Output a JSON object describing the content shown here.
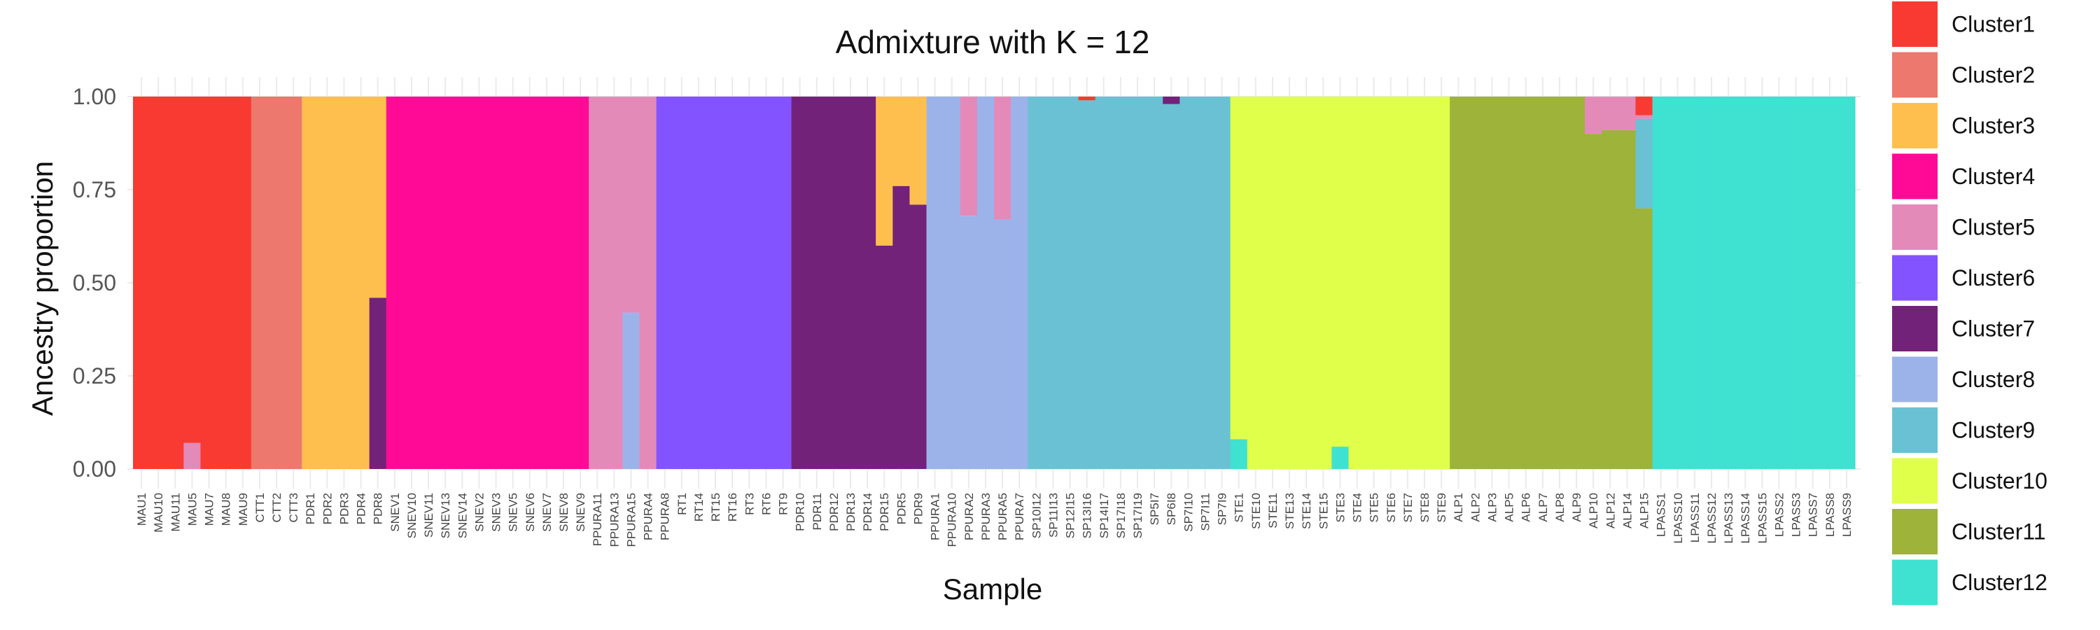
{
  "chart_data": {
    "type": "bar",
    "stacked": true,
    "title": "Admixture with K = 12",
    "xlabel": "Sample",
    "ylabel": "Ancestry proportion",
    "ylim": [
      0,
      1
    ],
    "yticks": [
      "0.00",
      "0.25",
      "0.50",
      "0.75",
      "1.00"
    ],
    "legend_position": "right",
    "clusters": [
      {
        "name": "Cluster1",
        "color": "#F93A32"
      },
      {
        "name": "Cluster2",
        "color": "#EC786E"
      },
      {
        "name": "Cluster3",
        "color": "#FFBF4F"
      },
      {
        "name": "Cluster4",
        "color": "#FF0A97"
      },
      {
        "name": "Cluster5",
        "color": "#E48AB9"
      },
      {
        "name": "Cluster6",
        "color": "#8253FF"
      },
      {
        "name": "Cluster7",
        "color": "#73227A"
      },
      {
        "name": "Cluster8",
        "color": "#9CB3EA"
      },
      {
        "name": "Cluster9",
        "color": "#6AC1D3"
      },
      {
        "name": "Cluster10",
        "color": "#E0FF4A"
      },
      {
        "name": "Cluster11",
        "color": "#9DB33A"
      },
      {
        "name": "Cluster12",
        "color": "#3FE1D1"
      }
    ],
    "samples": [
      {
        "name": "MAU1",
        "mix": {
          "1": 1
        }
      },
      {
        "name": "MAU10",
        "mix": {
          "1": 1
        }
      },
      {
        "name": "MAU11",
        "mix": {
          "1": 1
        }
      },
      {
        "name": "MAU5",
        "mix": {
          "1": 0.93,
          "5": 0.07
        }
      },
      {
        "name": "MAU7",
        "mix": {
          "1": 1
        }
      },
      {
        "name": "MAU8",
        "mix": {
          "1": 1
        }
      },
      {
        "name": "MAU9",
        "mix": {
          "1": 1
        }
      },
      {
        "name": "CTT1",
        "mix": {
          "2": 1
        }
      },
      {
        "name": "CTT2",
        "mix": {
          "2": 1
        }
      },
      {
        "name": "CTT3",
        "mix": {
          "2": 1
        }
      },
      {
        "name": "PDR1",
        "mix": {
          "3": 1
        }
      },
      {
        "name": "PDR2",
        "mix": {
          "3": 1
        }
      },
      {
        "name": "PDR3",
        "mix": {
          "3": 1
        }
      },
      {
        "name": "PDR4",
        "mix": {
          "3": 1
        }
      },
      {
        "name": "PDR8",
        "mix": {
          "7": 0.46,
          "3": 0.54
        }
      },
      {
        "name": "SNEV1",
        "mix": {
          "4": 1
        }
      },
      {
        "name": "SNEV10",
        "mix": {
          "4": 1
        }
      },
      {
        "name": "SNEV11",
        "mix": {
          "4": 1
        }
      },
      {
        "name": "SNEV13",
        "mix": {
          "4": 1
        }
      },
      {
        "name": "SNEV14",
        "mix": {
          "4": 1
        }
      },
      {
        "name": "SNEV2",
        "mix": {
          "4": 1
        }
      },
      {
        "name": "SNEV3",
        "mix": {
          "4": 1
        }
      },
      {
        "name": "SNEV5",
        "mix": {
          "4": 1
        }
      },
      {
        "name": "SNEV6",
        "mix": {
          "4": 1
        }
      },
      {
        "name": "SNEV7",
        "mix": {
          "4": 1
        }
      },
      {
        "name": "SNEV8",
        "mix": {
          "4": 1
        }
      },
      {
        "name": "SNEV9",
        "mix": {
          "4": 1
        }
      },
      {
        "name": "PPURA11",
        "mix": {
          "5": 1
        }
      },
      {
        "name": "PPURA13",
        "mix": {
          "5": 1
        }
      },
      {
        "name": "PPURA15",
        "mix": {
          "8": 0.42,
          "5": 0.58
        }
      },
      {
        "name": "PPURA4",
        "mix": {
          "5": 1
        }
      },
      {
        "name": "PPURA8",
        "mix": {
          "6": 1
        }
      },
      {
        "name": "RT1",
        "mix": {
          "6": 1
        }
      },
      {
        "name": "RT14",
        "mix": {
          "6": 1
        }
      },
      {
        "name": "RT15",
        "mix": {
          "6": 1
        }
      },
      {
        "name": "RT16",
        "mix": {
          "6": 1
        }
      },
      {
        "name": "RT3",
        "mix": {
          "6": 1
        }
      },
      {
        "name": "RT6",
        "mix": {
          "6": 1
        }
      },
      {
        "name": "RT9",
        "mix": {
          "6": 1
        }
      },
      {
        "name": "PDR10",
        "mix": {
          "7": 1
        }
      },
      {
        "name": "PDR11",
        "mix": {
          "7": 1
        }
      },
      {
        "name": "PDR12",
        "mix": {
          "7": 1
        }
      },
      {
        "name": "PDR13",
        "mix": {
          "7": 1
        }
      },
      {
        "name": "PDR14",
        "mix": {
          "7": 1
        }
      },
      {
        "name": "PDR15",
        "mix": {
          "7": 0.6,
          "3": 0.4
        }
      },
      {
        "name": "PDR5",
        "mix": {
          "7": 0.76,
          "3": 0.24
        }
      },
      {
        "name": "PDR9",
        "mix": {
          "7": 0.71,
          "3": 0.29
        }
      },
      {
        "name": "PPURA1",
        "mix": {
          "8": 1
        }
      },
      {
        "name": "PPURA10",
        "mix": {
          "8": 1
        }
      },
      {
        "name": "PPURA2",
        "mix": {
          "8": 0.68,
          "5": 0.32
        }
      },
      {
        "name": "PPURA3",
        "mix": {
          "8": 1
        }
      },
      {
        "name": "PPURA5",
        "mix": {
          "8": 0.67,
          "5": 0.33
        }
      },
      {
        "name": "PPURA7",
        "mix": {
          "8": 1
        }
      },
      {
        "name": "SP10I12",
        "mix": {
          "9": 1
        }
      },
      {
        "name": "SP11I13",
        "mix": {
          "9": 1
        }
      },
      {
        "name": "SP12I15",
        "mix": {
          "9": 1
        }
      },
      {
        "name": "SP13I16",
        "mix": {
          "9": 0.99,
          "1": 0.01
        }
      },
      {
        "name": "SP14I17",
        "mix": {
          "9": 1
        }
      },
      {
        "name": "SP17I18",
        "mix": {
          "9": 1
        }
      },
      {
        "name": "SP17I19",
        "mix": {
          "9": 1
        }
      },
      {
        "name": "SP5I7",
        "mix": {
          "9": 1
        }
      },
      {
        "name": "SP6I8",
        "mix": {
          "9": 0.98,
          "7": 0.02
        }
      },
      {
        "name": "SP7I10",
        "mix": {
          "9": 1
        }
      },
      {
        "name": "SP7I11",
        "mix": {
          "9": 1
        }
      },
      {
        "name": "SP7I9",
        "mix": {
          "9": 1
        }
      },
      {
        "name": "STE1",
        "mix": {
          "12": 0.08,
          "10": 0.92
        }
      },
      {
        "name": "STE10",
        "mix": {
          "10": 1
        }
      },
      {
        "name": "STE11",
        "mix": {
          "10": 1
        }
      },
      {
        "name": "STE13",
        "mix": {
          "10": 1
        }
      },
      {
        "name": "STE14",
        "mix": {
          "10": 1
        }
      },
      {
        "name": "STE15",
        "mix": {
          "10": 1
        }
      },
      {
        "name": "STE3",
        "mix": {
          "12": 0.06,
          "10": 0.94
        }
      },
      {
        "name": "STE4",
        "mix": {
          "10": 1
        }
      },
      {
        "name": "STE5",
        "mix": {
          "10": 1
        }
      },
      {
        "name": "STE6",
        "mix": {
          "10": 1
        }
      },
      {
        "name": "STE7",
        "mix": {
          "10": 1
        }
      },
      {
        "name": "STE8",
        "mix": {
          "10": 1
        }
      },
      {
        "name": "STE9",
        "mix": {
          "10": 1
        }
      },
      {
        "name": "ALP1",
        "mix": {
          "11": 1
        }
      },
      {
        "name": "ALP2",
        "mix": {
          "11": 1
        }
      },
      {
        "name": "ALP3",
        "mix": {
          "11": 1
        }
      },
      {
        "name": "ALP5",
        "mix": {
          "11": 1
        }
      },
      {
        "name": "ALP6",
        "mix": {
          "11": 1
        }
      },
      {
        "name": "ALP7",
        "mix": {
          "11": 1
        }
      },
      {
        "name": "ALP8",
        "mix": {
          "11": 1
        }
      },
      {
        "name": "ALP9",
        "mix": {
          "11": 1
        }
      },
      {
        "name": "ALP10",
        "mix": {
          "11": 0.9,
          "5": 0.1
        }
      },
      {
        "name": "ALP12",
        "mix": {
          "11": 0.91,
          "5": 0.09
        }
      },
      {
        "name": "ALP14",
        "mix": {
          "11": 0.91,
          "5": 0.09
        }
      },
      {
        "name": "ALP15",
        "mix": {
          "11": 0.7,
          "9": 0.24,
          "5": 0.01,
          "1": 0.05
        }
      },
      {
        "name": "LPASS1",
        "mix": {
          "12": 1
        }
      },
      {
        "name": "LPASS10",
        "mix": {
          "12": 1
        }
      },
      {
        "name": "LPASS11",
        "mix": {
          "12": 1
        }
      },
      {
        "name": "LPASS12",
        "mix": {
          "12": 1
        }
      },
      {
        "name": "LPASS13",
        "mix": {
          "12": 1
        }
      },
      {
        "name": "LPASS14",
        "mix": {
          "12": 1
        }
      },
      {
        "name": "LPASS15",
        "mix": {
          "12": 1
        }
      },
      {
        "name": "LPASS2",
        "mix": {
          "12": 1
        }
      },
      {
        "name": "LPASS3",
        "mix": {
          "12": 1
        }
      },
      {
        "name": "LPASS7",
        "mix": {
          "12": 1
        }
      },
      {
        "name": "LPASS8",
        "mix": {
          "12": 1
        }
      },
      {
        "name": "LPASS9",
        "mix": {
          "12": 1
        }
      }
    ]
  }
}
